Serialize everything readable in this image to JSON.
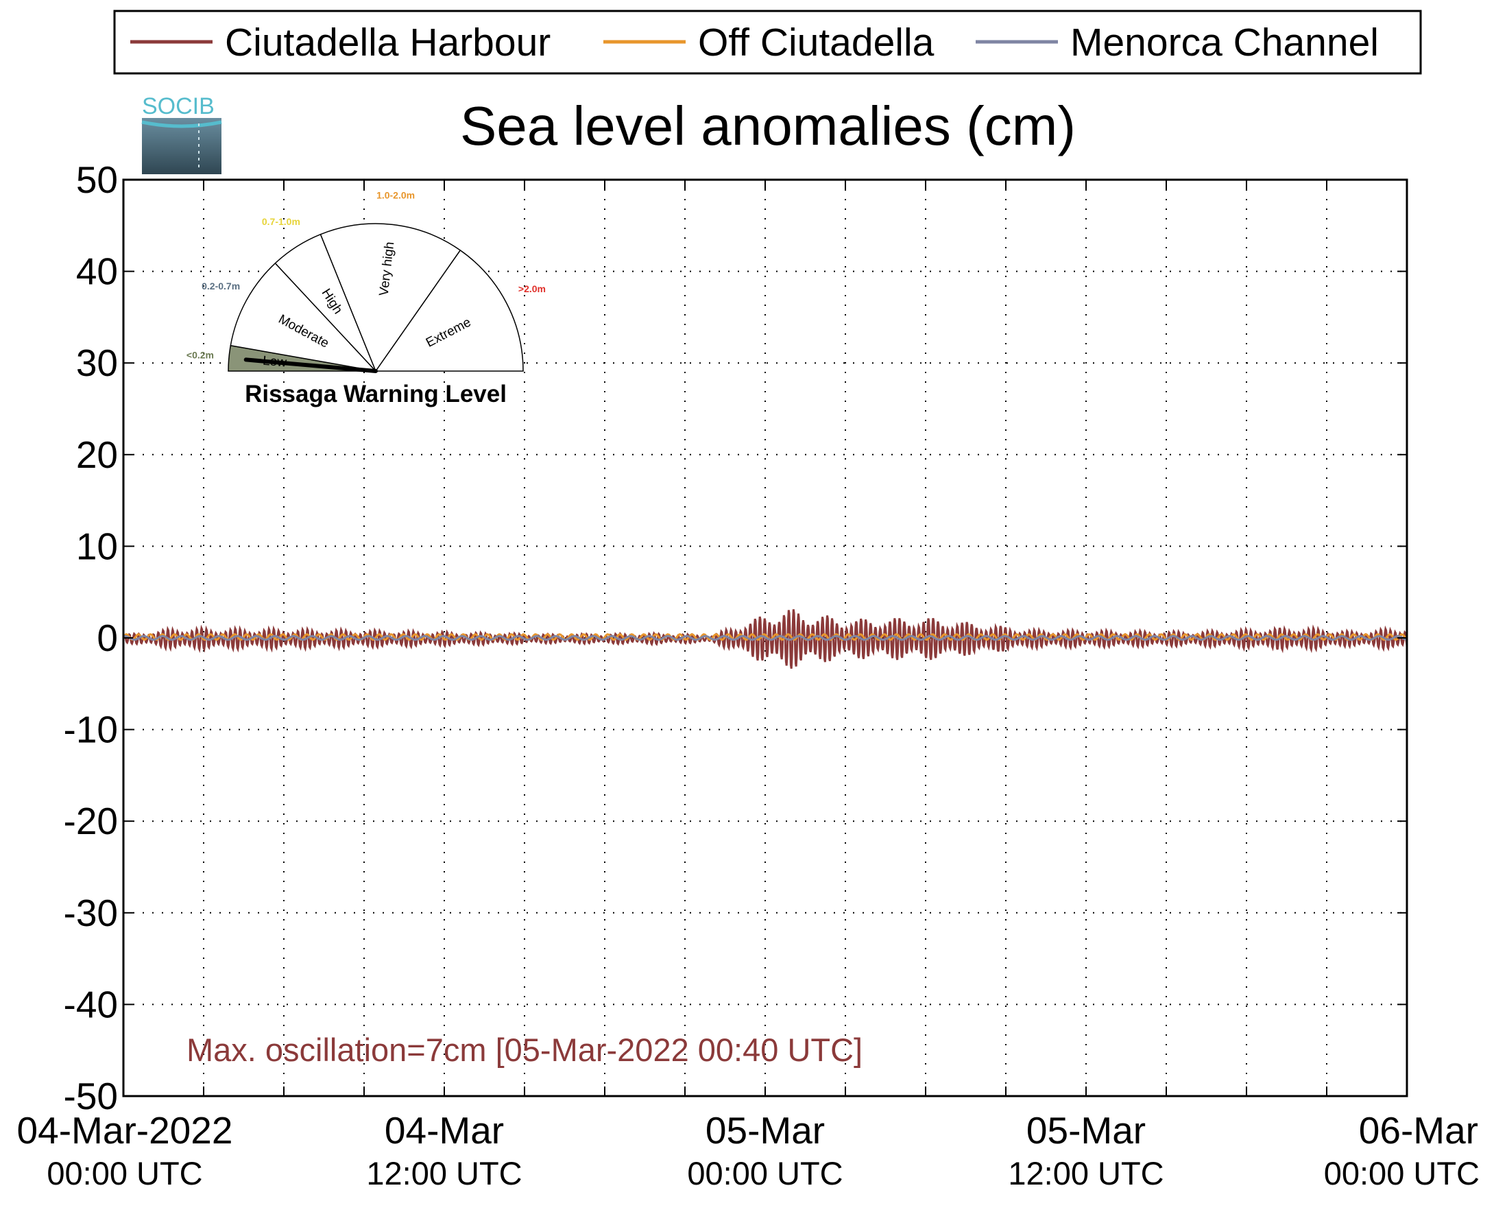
{
  "chart_data": {
    "type": "line",
    "title": "Sea level anomalies (cm)",
    "logo_text": "SOCIB",
    "ylim": [
      -50,
      50
    ],
    "yticks": [
      "50",
      "40",
      "30",
      "20",
      "10",
      "0",
      "-10",
      "-20",
      "-30",
      "-40",
      "-50"
    ],
    "xlim_hours": [
      0,
      48
    ],
    "xticks": [
      {
        "hour": 0,
        "date": "04-Mar-2022",
        "time": "00:00 UTC"
      },
      {
        "hour": 12,
        "date": "04-Mar",
        "time": "12:00 UTC"
      },
      {
        "hour": 24,
        "date": "05-Mar",
        "time": "00:00 UTC"
      },
      {
        "hour": 36,
        "date": "05-Mar",
        "time": "12:00 UTC"
      },
      {
        "hour": 48,
        "date": "06-Mar",
        "time": "00:00 UTC"
      }
    ],
    "grid": true,
    "legend_position": "top",
    "series": [
      {
        "name": "Ciutadella Harbour",
        "color": "#8b3a3a",
        "envelope_time": [
          "04-Mar 00:00",
          "04-Mar 02:00",
          "04-Mar 06:00",
          "04-Mar 10:00",
          "04-Mar 16:00",
          "04-Mar 20:00",
          "04-Mar 22:00",
          "05-Mar 00:40",
          "05-Mar 03:00",
          "05-Mar 06:00",
          "05-Mar 10:00",
          "05-Mar 16:00",
          "05-Mar 20:00",
          "05-Mar 22:00",
          "06-Mar 00:00"
        ],
        "envelope_amplitude_cm": [
          0.4,
          1.2,
          1.1,
          0.9,
          0.5,
          0.6,
          0.4,
          3.5,
          2.2,
          2.4,
          1.0,
          0.8,
          1.3,
          0.8,
          1.3
        ]
      },
      {
        "name": "Off Ciutadella",
        "color": "#e8962c",
        "approx_amplitude_cm": 0.3
      },
      {
        "name": "Menorca Channel",
        "color": "#7f85a3",
        "approx_amplitude_cm": 0.2
      }
    ],
    "annotation": {
      "text": "Max. oscillation=7cm [05-Mar-2022 00:40 UTC]",
      "color": "#8b3a3a"
    },
    "rissaga_gauge": {
      "title": "Rissaga Warning Level",
      "current_level": "Low",
      "sectors": [
        {
          "label": "Low",
          "range": "<0.2m",
          "range_color": "#6b7a52",
          "fill": "#8a9478"
        },
        {
          "label": "Moderate",
          "range": "0.2-0.7m",
          "range_color": "#5b7083",
          "fill": "#ffffff"
        },
        {
          "label": "High",
          "range": "0.7-1.0m",
          "range_color": "#e7d43a",
          "fill": "#ffffff"
        },
        {
          "label": "Very high",
          "range": "1.0-2.0m",
          "range_color": "#e8962c",
          "fill": "#ffffff"
        },
        {
          "label": "Extreme",
          "range": ">2.0m",
          "range_color": "#e0312b",
          "fill": "#ffffff"
        }
      ]
    }
  }
}
